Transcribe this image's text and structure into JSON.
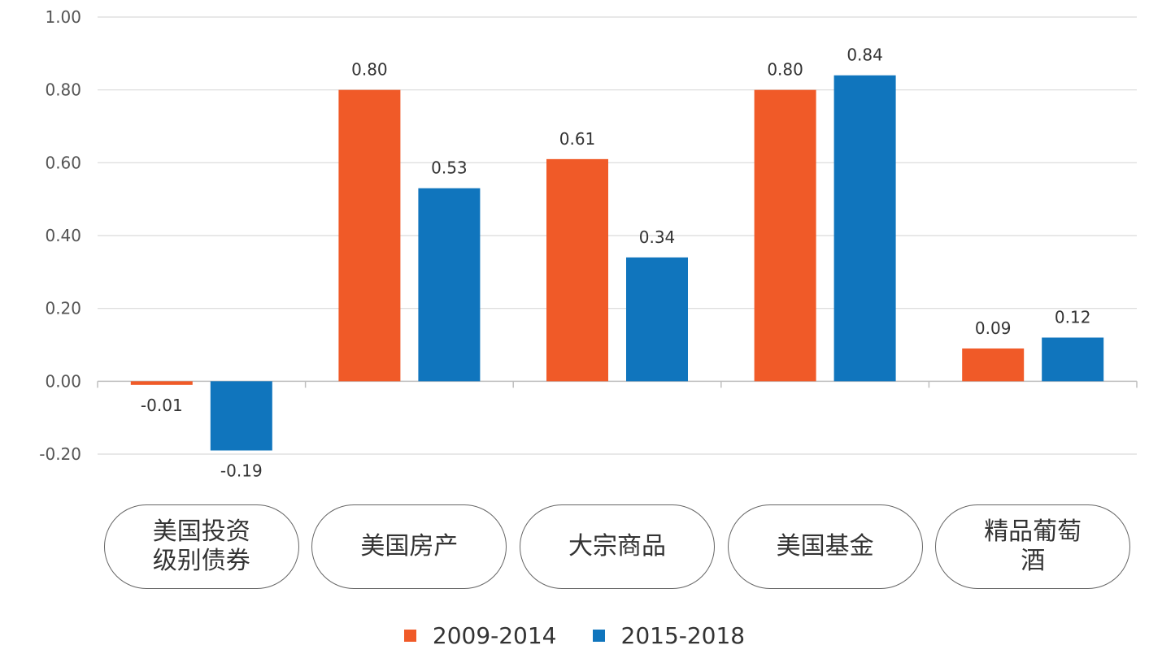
{
  "chart_data": {
    "type": "bar",
    "categories": [
      "美国投资级别债券",
      "美国房产",
      "大宗商品",
      "美国基金",
      "精品葡萄酒"
    ],
    "series": [
      {
        "name": "2009-2014",
        "color": "#f05a28",
        "values": [
          -0.01,
          0.8,
          0.61,
          0.8,
          0.09
        ],
        "labels": [
          "-0.01",
          "0.80",
          "0.61",
          "0.80",
          "0.09"
        ]
      },
      {
        "name": "2015-2018",
        "color": "#1075bd",
        "values": [
          -0.19,
          0.53,
          0.34,
          0.84,
          0.12
        ],
        "labels": [
          "-0.19",
          "0.53",
          "0.34",
          "0.84",
          "0.12"
        ]
      }
    ],
    "ylim": [
      -0.2,
      1.0
    ],
    "yticks": [
      "1.00",
      "0.80",
      "0.60",
      "0.40",
      "0.20",
      "0.00",
      "-0.20"
    ],
    "ytick_values": [
      1.0,
      0.8,
      0.6,
      0.4,
      0.2,
      0.0,
      -0.2
    ],
    "grid": true,
    "legend": "bottom-center",
    "title": "",
    "xlabel": "",
    "ylabel": ""
  }
}
